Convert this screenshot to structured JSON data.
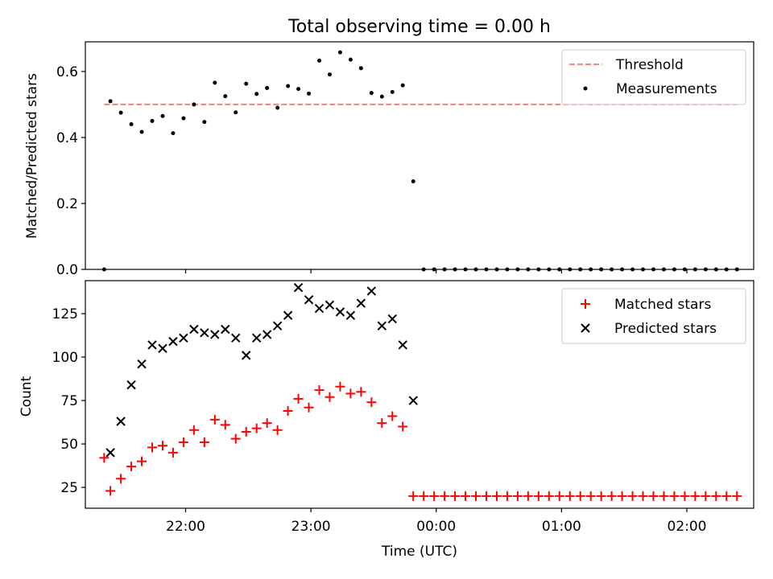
{
  "chart_data": [
    {
      "type": "scatter",
      "title": "Total observing time = 0.00 h",
      "xlabel": "",
      "ylabel": "Matched/Predicted stars",
      "ylim": [
        0,
        0.69
      ],
      "yticks": [
        "0.0",
        "0.2",
        "0.4",
        "0.6"
      ],
      "threshold": {
        "name": "Threshold",
        "value": 0.5,
        "color": "#ff7f7f"
      },
      "series": [
        {
          "name": "Measurements",
          "marker": "dot",
          "color": "#000000",
          "points": [
            [
              "21:21",
              0.0
            ],
            [
              "21:24",
              0.51
            ],
            [
              "21:29",
              0.475
            ],
            [
              "21:34",
              0.44
            ],
            [
              "21:39",
              0.417
            ],
            [
              "21:44",
              0.45
            ],
            [
              "21:49",
              0.465
            ],
            [
              "21:54",
              0.413
            ],
            [
              "21:59",
              0.458
            ],
            [
              "22:04",
              0.5
            ],
            [
              "22:09",
              0.447
            ],
            [
              "22:14",
              0.566
            ],
            [
              "22:19",
              0.525
            ],
            [
              "22:24",
              0.476
            ],
            [
              "22:29",
              0.563
            ],
            [
              "22:34",
              0.532
            ],
            [
              "22:39",
              0.55
            ],
            [
              "22:44",
              0.49
            ],
            [
              "22:49",
              0.556
            ],
            [
              "22:54",
              0.547
            ],
            [
              "22:59",
              0.533
            ],
            [
              "23:04",
              0.633
            ],
            [
              "23:09",
              0.591
            ],
            [
              "23:14",
              0.658
            ],
            [
              "23:19",
              0.636
            ],
            [
              "23:24",
              0.61
            ],
            [
              "23:29",
              0.535
            ],
            [
              "23:34",
              0.524
            ],
            [
              "23:39",
              0.538
            ],
            [
              "23:44",
              0.558
            ],
            [
              "23:49",
              0.267
            ],
            [
              "23:54",
              0.0
            ],
            [
              "23:59",
              0.0
            ],
            [
              "00:04",
              0.0
            ],
            [
              "00:09",
              0.0
            ],
            [
              "00:14",
              0.0
            ],
            [
              "00:19",
              0.0
            ],
            [
              "00:24",
              0.0
            ],
            [
              "00:29",
              0.0
            ],
            [
              "00:34",
              0.0
            ],
            [
              "00:39",
              0.0
            ],
            [
              "00:44",
              0.0
            ],
            [
              "00:49",
              0.0
            ],
            [
              "00:54",
              0.0
            ],
            [
              "00:59",
              0.0
            ],
            [
              "01:04",
              0.0
            ],
            [
              "01:09",
              0.0
            ],
            [
              "01:14",
              0.0
            ],
            [
              "01:19",
              0.0
            ],
            [
              "01:24",
              0.0
            ],
            [
              "01:29",
              0.0
            ],
            [
              "01:34",
              0.0
            ],
            [
              "01:39",
              0.0
            ],
            [
              "01:44",
              0.0
            ],
            [
              "01:49",
              0.0
            ],
            [
              "01:54",
              0.0
            ],
            [
              "01:59",
              0.0
            ],
            [
              "02:04",
              0.0
            ],
            [
              "02:09",
              0.0
            ],
            [
              "02:14",
              0.0
            ],
            [
              "02:19",
              0.0
            ],
            [
              "02:24",
              0.0
            ]
          ]
        }
      ],
      "legend": {
        "position": "top-right",
        "entries": [
          "Threshold",
          "Measurements"
        ]
      }
    },
    {
      "type": "scatter",
      "title": "",
      "xlabel": "Time (UTC)",
      "ylabel": "Count",
      "xlim": [
        "21:12",
        "02:32"
      ],
      "ylim": [
        13,
        144
      ],
      "xticks": [
        "22:00",
        "23:00",
        "00:00",
        "01:00",
        "02:00"
      ],
      "yticks": [
        "25",
        "50",
        "75",
        "100",
        "125"
      ],
      "series": [
        {
          "name": "Matched stars",
          "marker": "plus",
          "color": "#ff0000",
          "points": [
            [
              "21:21",
              42
            ],
            [
              "21:24",
              23
            ],
            [
              "21:29",
              30
            ],
            [
              "21:34",
              37
            ],
            [
              "21:39",
              40
            ],
            [
              "21:44",
              48
            ],
            [
              "21:49",
              49
            ],
            [
              "21:54",
              45
            ],
            [
              "21:59",
              51
            ],
            [
              "22:04",
              58
            ],
            [
              "22:09",
              51
            ],
            [
              "22:14",
              64
            ],
            [
              "22:19",
              61
            ],
            [
              "22:24",
              53
            ],
            [
              "22:29",
              57
            ],
            [
              "22:34",
              59
            ],
            [
              "22:39",
              62
            ],
            [
              "22:44",
              58
            ],
            [
              "22:49",
              69
            ],
            [
              "22:54",
              76
            ],
            [
              "22:59",
              71
            ],
            [
              "23:04",
              81
            ],
            [
              "23:09",
              77
            ],
            [
              "23:14",
              83
            ],
            [
              "23:19",
              79
            ],
            [
              "23:24",
              80
            ],
            [
              "23:29",
              74
            ],
            [
              "23:34",
              62
            ],
            [
              "23:39",
              66
            ],
            [
              "23:44",
              60
            ],
            [
              "23:49",
              20
            ],
            [
              "23:54",
              20
            ],
            [
              "23:59",
              20
            ],
            [
              "00:04",
              20
            ],
            [
              "00:09",
              20
            ],
            [
              "00:14",
              20
            ],
            [
              "00:19",
              20
            ],
            [
              "00:24",
              20
            ],
            [
              "00:29",
              20
            ],
            [
              "00:34",
              20
            ],
            [
              "00:39",
              20
            ],
            [
              "00:44",
              20
            ],
            [
              "00:49",
              20
            ],
            [
              "00:54",
              20
            ],
            [
              "00:59",
              20
            ],
            [
              "01:04",
              20
            ],
            [
              "01:09",
              20
            ],
            [
              "01:14",
              20
            ],
            [
              "01:19",
              20
            ],
            [
              "01:24",
              20
            ],
            [
              "01:29",
              20
            ],
            [
              "01:34",
              20
            ],
            [
              "01:39",
              20
            ],
            [
              "01:44",
              20
            ],
            [
              "01:49",
              20
            ],
            [
              "01:54",
              20
            ],
            [
              "01:59",
              20
            ],
            [
              "02:04",
              20
            ],
            [
              "02:09",
              20
            ],
            [
              "02:14",
              20
            ],
            [
              "02:19",
              20
            ],
            [
              "02:24",
              20
            ]
          ]
        },
        {
          "name": "Predicted stars",
          "marker": "x",
          "color": "#000000",
          "points": [
            [
              "21:24",
              45
            ],
            [
              "21:29",
              63
            ],
            [
              "21:34",
              84
            ],
            [
              "21:39",
              96
            ],
            [
              "21:44",
              107
            ],
            [
              "21:49",
              105
            ],
            [
              "21:54",
              109
            ],
            [
              "21:59",
              111
            ],
            [
              "22:04",
              116
            ],
            [
              "22:09",
              114
            ],
            [
              "22:14",
              113
            ],
            [
              "22:19",
              116
            ],
            [
              "22:24",
              111
            ],
            [
              "22:29",
              101
            ],
            [
              "22:34",
              111
            ],
            [
              "22:39",
              113
            ],
            [
              "22:44",
              118
            ],
            [
              "22:49",
              124
            ],
            [
              "22:54",
              140
            ],
            [
              "22:59",
              133
            ],
            [
              "23:04",
              128
            ],
            [
              "23:09",
              130
            ],
            [
              "23:14",
              126
            ],
            [
              "23:19",
              124
            ],
            [
              "23:24",
              131
            ],
            [
              "23:29",
              138
            ],
            [
              "23:34",
              118
            ],
            [
              "23:39",
              122
            ],
            [
              "23:44",
              107
            ],
            [
              "23:49",
              75
            ]
          ]
        }
      ],
      "legend": {
        "position": "top-right",
        "entries": [
          "Matched stars",
          "Predicted stars"
        ]
      }
    }
  ]
}
